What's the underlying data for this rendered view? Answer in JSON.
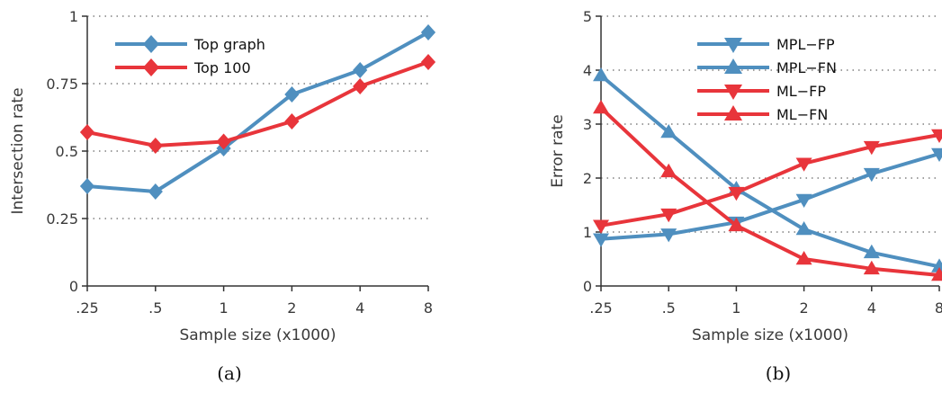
{
  "chart_data": [
    {
      "type": "line",
      "caption": "(a)",
      "categories": [
        ".25",
        ".5",
        "1",
        "2",
        "4",
        "8"
      ],
      "xlabel": "Sample size (x1000)",
      "ylabel": "Intersection rate",
      "ylim": [
        0,
        1
      ],
      "yticks": [
        "0",
        "0.25",
        "0.5",
        "0.75",
        "1"
      ],
      "grid": "horizontal dotted",
      "legend": "top-left",
      "series": [
        {
          "name": "Top graph",
          "color": "#4f8fbf",
          "marker": "diamond",
          "values": [
            0.37,
            0.35,
            0.51,
            0.71,
            0.8,
            0.94
          ]
        },
        {
          "name": "Top 100",
          "color": "#e8353b",
          "marker": "diamond",
          "values": [
            0.57,
            0.52,
            0.535,
            0.61,
            0.74,
            0.83
          ]
        }
      ]
    },
    {
      "type": "line",
      "caption": "(b)",
      "categories": [
        ".25",
        ".5",
        "1",
        "2",
        "4",
        "8"
      ],
      "xlabel": "Sample size (x1000)",
      "ylabel": "Error rate",
      "ylim": [
        0,
        5
      ],
      "yticks": [
        "0",
        "1",
        "2",
        "3",
        "4",
        "5"
      ],
      "grid": "horizontal dotted",
      "legend": "top-center",
      "series": [
        {
          "name": "MPL−FP",
          "color": "#4f8fbf",
          "marker": "triangle-down",
          "values": [
            0.87,
            0.96,
            1.18,
            1.6,
            2.08,
            2.45
          ]
        },
        {
          "name": "MPL−FN",
          "color": "#4f8fbf",
          "marker": "triangle-up",
          "values": [
            3.9,
            2.85,
            1.8,
            1.05,
            0.62,
            0.36
          ]
        },
        {
          "name": "ML−FP",
          "color": "#e8353b",
          "marker": "triangle-down",
          "values": [
            1.12,
            1.33,
            1.73,
            2.27,
            2.58,
            2.8
          ]
        },
        {
          "name": "ML−FN",
          "color": "#e8353b",
          "marker": "triangle-up",
          "values": [
            3.3,
            2.12,
            1.12,
            0.5,
            0.32,
            0.2
          ]
        }
      ]
    }
  ]
}
